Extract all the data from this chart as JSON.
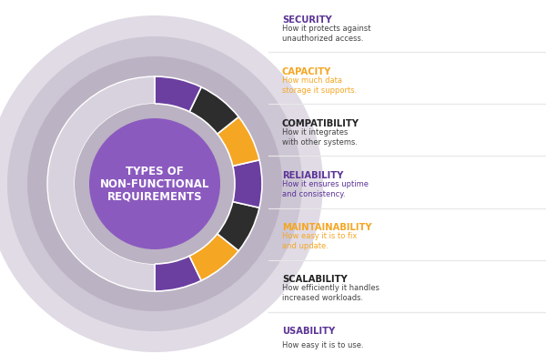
{
  "title_lines": [
    "TYPES OF",
    "NON-FUNCTIONAL",
    "REQUIREMENTS"
  ],
  "title_color": "#ffffff",
  "segments": [
    {
      "label": "SECURITY",
      "desc": "How it protects against\nunauthorized access.",
      "color": "#6b3fa0",
      "label_color": "#5b3496",
      "desc_color": "#444444"
    },
    {
      "label": "CAPACITY",
      "desc": "How much data\nstorage it supports.",
      "color": "#f5a623",
      "label_color": "#f5a623",
      "desc_color": "#f5a623"
    },
    {
      "label": "COMPATIBILITY",
      "desc": "How it integrates\nwith other systems.",
      "color": "#2d2d2d",
      "label_color": "#222222",
      "desc_color": "#444444"
    },
    {
      "label": "RELIABILITY",
      "desc": "How it ensures uptime\nand consistency.",
      "color": "#6b3fa0",
      "label_color": "#5b3496",
      "desc_color": "#5b3496"
    },
    {
      "label": "MAINTAINABILITY",
      "desc": "How easy it is to fix\nand update.",
      "color": "#f5a623",
      "label_color": "#f5a623",
      "desc_color": "#f5a623"
    },
    {
      "label": "SCALABILITY",
      "desc": "How efficiently it handles\nincreased workloads.",
      "color": "#2d2d2d",
      "label_color": "#222222",
      "desc_color": "#444444"
    },
    {
      "label": "USABILITY",
      "desc": "How easy it is to use.",
      "color": "#6b3fa0",
      "label_color": "#5b3496",
      "desc_color": "#444444"
    }
  ],
  "bg_color": "#ffffff",
  "center_circle_color": "#8b5abf",
  "shadow_colors": [
    "#e0dbe5",
    "#cdc6d4",
    "#bbb2c3"
  ],
  "left_ring_color": "#d8d2de",
  "divider_color": "#e8e8e8"
}
